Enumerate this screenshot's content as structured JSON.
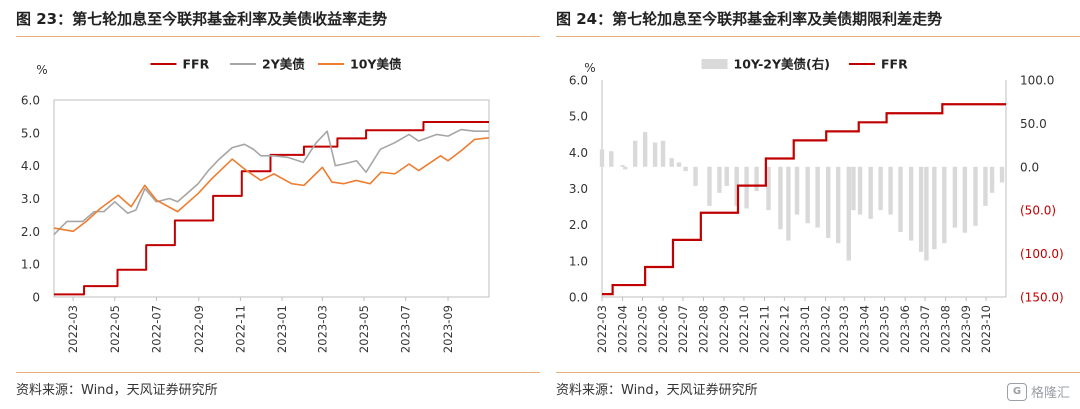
{
  "left_panel": {
    "title": "图 23：第七轮加息至今联邦基金利率及美债收益率走势",
    "source": "资料来源：Wind，天风证券研究所"
  },
  "right_panel": {
    "title": "图 24：第七轮加息至今联邦基金利率及美债期限利差走势",
    "source": "资料来源：Wind，天风证券研究所"
  },
  "watermark": {
    "badge": "G",
    "text": "格隆汇"
  },
  "chart_data": [
    {
      "type": "line",
      "ylabel": "%",
      "ylim": [
        0,
        6
      ],
      "yticks": [
        "0",
        "1.0",
        "2.0",
        "3.0",
        "4.0",
        "5.0",
        "6.0"
      ],
      "xlim": [
        "2022-02-01",
        "2023-10-31"
      ],
      "xticks": [
        "2022-03",
        "2022-05",
        "2022-07",
        "2022-09",
        "2022-11",
        "2023-01",
        "2023-03",
        "2023-05",
        "2023-07",
        "2023-09"
      ],
      "legend_position": "top",
      "grid": false,
      "series": [
        {
          "name": "FFR",
          "color": "#c00000",
          "style": "step",
          "points": [
            [
              "2022-02-01",
              0.08
            ],
            [
              "2022-03-17",
              0.33
            ],
            [
              "2022-05-05",
              0.83
            ],
            [
              "2022-06-16",
              1.58
            ],
            [
              "2022-07-28",
              2.33
            ],
            [
              "2022-09-22",
              3.08
            ],
            [
              "2022-11-03",
              3.83
            ],
            [
              "2022-12-15",
              4.33
            ],
            [
              "2023-02-02",
              4.58
            ],
            [
              "2023-03-23",
              4.83
            ],
            [
              "2023-05-04",
              5.08
            ],
            [
              "2023-07-27",
              5.33
            ],
            [
              "2023-10-31",
              5.33
            ]
          ]
        },
        {
          "name": "2Y美债",
          "color": "#a6a6a6",
          "style": "line",
          "points": [
            [
              "2022-02-01",
              1.9
            ],
            [
              "2022-02-20",
              2.3
            ],
            [
              "2022-03-15",
              2.3
            ],
            [
              "2022-04-01",
              2.6
            ],
            [
              "2022-04-15",
              2.6
            ],
            [
              "2022-05-01",
              2.9
            ],
            [
              "2022-05-20",
              2.55
            ],
            [
              "2022-06-01",
              2.65
            ],
            [
              "2022-06-14",
              3.3
            ],
            [
              "2022-07-01",
              2.9
            ],
            [
              "2022-07-20",
              3.0
            ],
            [
              "2022-08-01",
              2.9
            ],
            [
              "2022-08-31",
              3.45
            ],
            [
              "2022-09-15",
              3.85
            ],
            [
              "2022-10-01",
              4.2
            ],
            [
              "2022-10-20",
              4.55
            ],
            [
              "2022-11-07",
              4.65
            ],
            [
              "2022-11-20",
              4.5
            ],
            [
              "2022-12-01",
              4.3
            ],
            [
              "2022-12-20",
              4.3
            ],
            [
              "2023-01-10",
              4.25
            ],
            [
              "2023-02-01",
              4.1
            ],
            [
              "2023-02-20",
              4.7
            ],
            [
              "2023-03-08",
              5.05
            ],
            [
              "2023-03-20",
              4.0
            ],
            [
              "2023-04-01",
              4.05
            ],
            [
              "2023-04-20",
              4.15
            ],
            [
              "2023-05-04",
              3.8
            ],
            [
              "2023-05-25",
              4.5
            ],
            [
              "2023-06-15",
              4.7
            ],
            [
              "2023-07-06",
              4.95
            ],
            [
              "2023-07-20",
              4.75
            ],
            [
              "2023-08-15",
              4.95
            ],
            [
              "2023-09-01",
              4.9
            ],
            [
              "2023-09-20",
              5.1
            ],
            [
              "2023-10-10",
              5.05
            ],
            [
              "2023-10-31",
              5.05
            ]
          ]
        },
        {
          "name": "10Y美债",
          "color": "#ed7d31",
          "style": "line",
          "points": [
            [
              "2022-02-01",
              2.1
            ],
            [
              "2022-03-01",
              2.0
            ],
            [
              "2022-03-20",
              2.3
            ],
            [
              "2022-04-10",
              2.7
            ],
            [
              "2022-05-06",
              3.1
            ],
            [
              "2022-05-25",
              2.75
            ],
            [
              "2022-06-14",
              3.4
            ],
            [
              "2022-07-01",
              2.95
            ],
            [
              "2022-08-01",
              2.6
            ],
            [
              "2022-08-31",
              3.15
            ],
            [
              "2022-09-20",
              3.6
            ],
            [
              "2022-10-20",
              4.2
            ],
            [
              "2022-11-10",
              3.85
            ],
            [
              "2022-12-01",
              3.55
            ],
            [
              "2022-12-20",
              3.75
            ],
            [
              "2023-01-15",
              3.45
            ],
            [
              "2023-02-02",
              3.4
            ],
            [
              "2023-03-01",
              3.95
            ],
            [
              "2023-03-15",
              3.5
            ],
            [
              "2023-04-01",
              3.45
            ],
            [
              "2023-04-20",
              3.55
            ],
            [
              "2023-05-10",
              3.45
            ],
            [
              "2023-05-26",
              3.8
            ],
            [
              "2023-06-15",
              3.75
            ],
            [
              "2023-07-06",
              4.05
            ],
            [
              "2023-07-20",
              3.85
            ],
            [
              "2023-08-21",
              4.3
            ],
            [
              "2023-09-01",
              4.15
            ],
            [
              "2023-09-20",
              4.45
            ],
            [
              "2023-10-10",
              4.8
            ],
            [
              "2023-10-31",
              4.85
            ]
          ]
        }
      ]
    },
    {
      "type": "bar+line",
      "ylabel": "%",
      "ylim": [
        0,
        6
      ],
      "yticks": [
        "0.0",
        "1.0",
        "2.0",
        "3.0",
        "4.0",
        "5.0",
        "6.0"
      ],
      "y2lim": [
        -150,
        100
      ],
      "y2ticks": [
        "(150.0)",
        "(100.0)",
        "(50.0)",
        "0.0",
        "50.0",
        "100.0"
      ],
      "xlim": [
        "2022-03-01",
        "2023-10-31"
      ],
      "xticks": [
        "2022-03",
        "2022-04",
        "2022-05",
        "2022-06",
        "2022-07",
        "2022-08",
        "2022-09",
        "2022-10",
        "2022-11",
        "2022-12",
        "2023-01",
        "2023-02",
        "2023-03",
        "2023-04",
        "2023-05",
        "2023-06",
        "2023-07",
        "2023-08",
        "2023-09",
        "2023-10"
      ],
      "legend_position": "top",
      "grid": false,
      "series": [
        {
          "name": "10Y-2Y美债(右)",
          "color": "#d9d9d9",
          "axis": "right",
          "style": "bar",
          "points": [
            [
              "2022-03-01",
              20
            ],
            [
              "2022-03-15",
              18
            ],
            [
              "2022-04-01",
              2
            ],
            [
              "2022-04-05",
              -3
            ],
            [
              "2022-04-20",
              30
            ],
            [
              "2022-05-05",
              40
            ],
            [
              "2022-05-20",
              28
            ],
            [
              "2022-06-01",
              30
            ],
            [
              "2022-06-14",
              10
            ],
            [
              "2022-06-25",
              5
            ],
            [
              "2022-07-05",
              -5
            ],
            [
              "2022-07-20",
              -22
            ],
            [
              "2022-08-10",
              -45
            ],
            [
              "2022-08-25",
              -30
            ],
            [
              "2022-09-05",
              -22
            ],
            [
              "2022-09-20",
              -45
            ],
            [
              "2022-10-05",
              -48
            ],
            [
              "2022-10-20",
              -28
            ],
            [
              "2022-11-07",
              -50
            ],
            [
              "2022-11-25",
              -72
            ],
            [
              "2022-12-07",
              -85
            ],
            [
              "2022-12-20",
              -55
            ],
            [
              "2023-01-05",
              -65
            ],
            [
              "2023-01-20",
              -70
            ],
            [
              "2023-02-05",
              -82
            ],
            [
              "2023-02-20",
              -88
            ],
            [
              "2023-03-08",
              -108
            ],
            [
              "2023-03-15",
              -50
            ],
            [
              "2023-03-25",
              -55
            ],
            [
              "2023-04-10",
              -60
            ],
            [
              "2023-04-25",
              -50
            ],
            [
              "2023-05-10",
              -55
            ],
            [
              "2023-05-25",
              -75
            ],
            [
              "2023-06-10",
              -85
            ],
            [
              "2023-06-25",
              -98
            ],
            [
              "2023-07-03",
              -108
            ],
            [
              "2023-07-15",
              -95
            ],
            [
              "2023-07-30",
              -88
            ],
            [
              "2023-08-15",
              -70
            ],
            [
              "2023-08-30",
              -76
            ],
            [
              "2023-09-15",
              -68
            ],
            [
              "2023-09-30",
              -45
            ],
            [
              "2023-10-10",
              -30
            ],
            [
              "2023-10-25",
              -18
            ]
          ]
        },
        {
          "name": "FFR",
          "color": "#c00000",
          "axis": "left",
          "style": "step",
          "points": [
            [
              "2022-03-01",
              0.08
            ],
            [
              "2022-03-17",
              0.33
            ],
            [
              "2022-05-05",
              0.83
            ],
            [
              "2022-06-16",
              1.58
            ],
            [
              "2022-07-28",
              2.33
            ],
            [
              "2022-09-22",
              3.08
            ],
            [
              "2022-11-03",
              3.83
            ],
            [
              "2022-12-15",
              4.33
            ],
            [
              "2023-02-02",
              4.58
            ],
            [
              "2023-03-23",
              4.83
            ],
            [
              "2023-05-04",
              5.08
            ],
            [
              "2023-07-27",
              5.33
            ],
            [
              "2023-10-31",
              5.33
            ]
          ]
        }
      ]
    }
  ]
}
